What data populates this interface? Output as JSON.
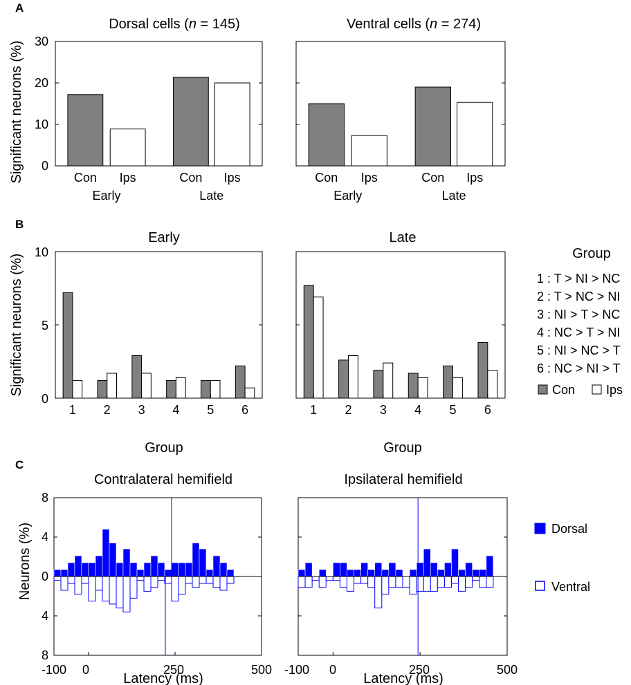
{
  "panel_letters": {
    "a": "A",
    "b": "B",
    "c": "C"
  },
  "colors": {
    "con": "#808080",
    "ips": "#ffffff",
    "dorsal": "#0000ff",
    "ventral": "#ffffff",
    "ventral_edge": "#0000ff",
    "axis": "#000000"
  },
  "panel_a": {
    "ylabel": "Significant neurons (%)",
    "dorsal_title": {
      "prefix": "Dorsal cells (",
      "n": "n",
      "suffix": " = 145)"
    },
    "ventral_title": {
      "prefix": "Ventral cells (",
      "n": "n",
      "suffix": " =  274)"
    }
  },
  "panel_b": {
    "ylabel": "Significant neurons (%)",
    "xlabel": "Group",
    "legend": {
      "title": "Group",
      "items": [
        "1 : T > NI > NC",
        "2 : T > NC > NI",
        "3 : NI > T > NC",
        "4 : NC > T > NI",
        "5 : NI > NC > T",
        "6 : NC > NI > T"
      ],
      "con_label": "Con",
      "ips_label": "Ips"
    }
  },
  "panel_c": {
    "ylabel": "Neurons (%)",
    "xlabel": "Latency (ms)",
    "legend": {
      "dorsal": "Dorsal",
      "ventral": "Ventral"
    }
  },
  "chart_data": [
    {
      "id": "A-dorsal",
      "type": "bar",
      "title": "Dorsal cells (n = 145)",
      "ylabel": "Significant neurons (%)",
      "ylim": [
        0,
        30
      ],
      "yticks": [
        0,
        10,
        20,
        30
      ],
      "categories": [
        "Con",
        "Ips",
        "Con",
        "Ips"
      ],
      "groups": [
        "Early",
        "Late"
      ],
      "bars": [
        {
          "group": "Early",
          "label": "Con",
          "value": 17.2
        },
        {
          "group": "Early",
          "label": "Ips",
          "value": 8.9
        },
        {
          "group": "Late",
          "label": "Con",
          "value": 21.4
        },
        {
          "group": "Late",
          "label": "Ips",
          "value": 20.0
        }
      ],
      "grid": false
    },
    {
      "id": "A-ventral",
      "type": "bar",
      "title": "Ventral cells (n =  274)",
      "ylim": [
        0,
        30
      ],
      "categories": [
        "Con",
        "Ips",
        "Con",
        "Ips"
      ],
      "groups": [
        "Early",
        "Late"
      ],
      "bars": [
        {
          "group": "Early",
          "label": "Con",
          "value": 15.0
        },
        {
          "group": "Early",
          "label": "Ips",
          "value": 7.3
        },
        {
          "group": "Late",
          "label": "Con",
          "value": 19.0
        },
        {
          "group": "Late",
          "label": "Ips",
          "value": 15.3
        }
      ],
      "grid": false
    },
    {
      "id": "B-early",
      "type": "bar",
      "title": "Early",
      "xlabel": "Group",
      "ylabel": "Significant neurons (%)",
      "ylim": [
        0,
        10
      ],
      "yticks": [
        0,
        5,
        10
      ],
      "categories": [
        "1",
        "2",
        "3",
        "4",
        "5",
        "6"
      ],
      "series": [
        {
          "name": "Con",
          "values": [
            7.2,
            1.2,
            2.9,
            1.2,
            1.2,
            2.2
          ]
        },
        {
          "name": "Ips",
          "values": [
            1.2,
            1.7,
            1.7,
            1.4,
            1.2,
            0.7
          ]
        }
      ],
      "legend": "right",
      "grid": false
    },
    {
      "id": "B-late",
      "type": "bar",
      "title": "Late",
      "xlabel": "Group",
      "ylim": [
        0,
        10
      ],
      "categories": [
        "1",
        "2",
        "3",
        "4",
        "5",
        "6"
      ],
      "series": [
        {
          "name": "Con",
          "values": [
            7.7,
            2.6,
            1.9,
            1.7,
            2.2,
            3.8
          ]
        },
        {
          "name": "Ips",
          "values": [
            6.9,
            2.9,
            2.4,
            1.4,
            1.4,
            1.9
          ]
        }
      ],
      "grid": false
    },
    {
      "id": "C-contra",
      "type": "bar",
      "title": "Contralateral hemifield",
      "xlabel": "Latency (ms)",
      "ylabel": "Neurons (%)",
      "xlim": [
        -100,
        500
      ],
      "xticks": [
        -100,
        0,
        250,
        500
      ],
      "ylim_up": [
        0,
        8
      ],
      "ylim_down": [
        0,
        8
      ],
      "yticks_up": [
        0,
        4,
        8
      ],
      "yticks_down": [
        4,
        8
      ],
      "bin_start": -100,
      "bin_width": 20,
      "vline_up": 240,
      "vline_down": 222,
      "series": [
        {
          "name": "Dorsal",
          "direction": "up",
          "values": [
            0.7,
            0.7,
            1.4,
            2.1,
            1.4,
            1.4,
            2.1,
            4.8,
            3.4,
            1.4,
            2.8,
            1.4,
            0.7,
            1.4,
            2.1,
            1.4,
            0.7,
            1.4,
            1.4,
            1.4,
            3.4,
            2.8,
            0.7,
            2.1,
            1.4,
            0.7
          ]
        },
        {
          "name": "Ventral",
          "direction": "down",
          "values": [
            0.4,
            1.4,
            0.7,
            1.8,
            0.7,
            2.5,
            1.4,
            2.5,
            2.8,
            3.2,
            3.6,
            2.2,
            0.4,
            1.5,
            1.1,
            0.4,
            0.7,
            2.5,
            1.8,
            0.7,
            1.1,
            0.7,
            0.7,
            1.1,
            1.4,
            0.7
          ]
        }
      ]
    },
    {
      "id": "C-ipsi",
      "type": "bar",
      "title": "Ipsilateral hemifield",
      "xlabel": "Latency (ms)",
      "xlim": [
        -100,
        500
      ],
      "xticks": [
        -100,
        0,
        250,
        500
      ],
      "ylim_up": [
        0,
        8
      ],
      "ylim_down": [
        0,
        8
      ],
      "bin_start": -100,
      "bin_width": 20,
      "vline": 244,
      "series": [
        {
          "name": "Dorsal",
          "direction": "up",
          "values": [
            0.7,
            1.4,
            0,
            0.7,
            0,
            1.4,
            1.4,
            0.7,
            0.7,
            1.4,
            0.7,
            1.4,
            0.7,
            1.4,
            0.7,
            0,
            0.7,
            1.4,
            2.8,
            1.4,
            0.7,
            1.4,
            2.8,
            0.7,
            1.4,
            0.7,
            0.7,
            2.1
          ]
        },
        {
          "name": "Ventral",
          "direction": "down",
          "values": [
            1.1,
            1.1,
            0.4,
            1.1,
            0.4,
            0.4,
            1.1,
            1.5,
            0.7,
            0.7,
            1.1,
            3.2,
            1.8,
            1.1,
            1.1,
            1.1,
            1.8,
            1.5,
            1.5,
            1.5,
            1.1,
            1.1,
            0.7,
            1.5,
            1.1,
            0.4,
            1.1,
            1.1
          ]
        }
      ]
    }
  ]
}
